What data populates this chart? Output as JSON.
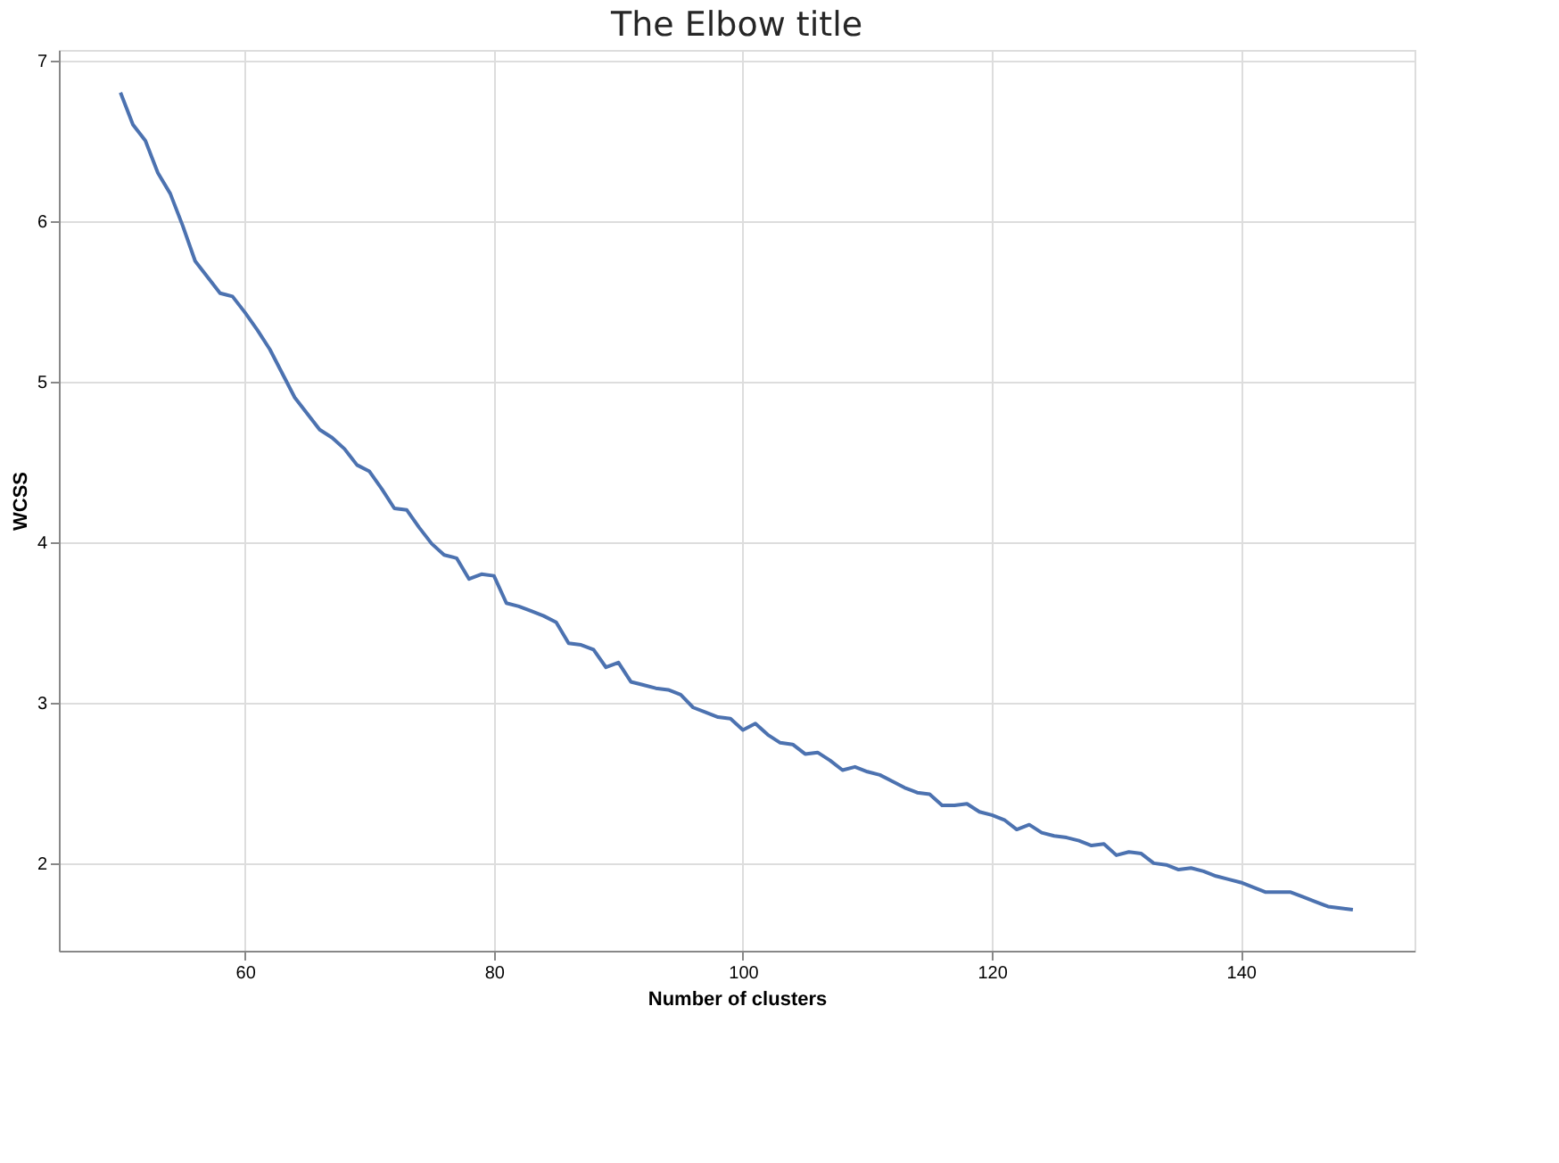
{
  "chart_data": {
    "type": "line",
    "title": "The Elbow title",
    "xlabel": "Number of clusters",
    "ylabel": "WCSS",
    "x": [
      50,
      51,
      52,
      53,
      54,
      55,
      56,
      57,
      58,
      59,
      60,
      61,
      62,
      63,
      64,
      65,
      66,
      67,
      68,
      69,
      70,
      71,
      72,
      73,
      74,
      75,
      76,
      77,
      78,
      79,
      80,
      81,
      82,
      83,
      84,
      85,
      86,
      87,
      88,
      89,
      90,
      91,
      92,
      93,
      94,
      95,
      96,
      97,
      98,
      99,
      100,
      101,
      102,
      103,
      104,
      105,
      106,
      107,
      108,
      109,
      110,
      111,
      112,
      113,
      114,
      115,
      116,
      117,
      118,
      119,
      120,
      121,
      122,
      123,
      124,
      125,
      126,
      127,
      128,
      129,
      130,
      131,
      132,
      133,
      134,
      135,
      136,
      137,
      138,
      139,
      140,
      141,
      142,
      143,
      144,
      145,
      146,
      147,
      148,
      149
    ],
    "series": [
      {
        "color": "#4c72b0",
        "values": [
          6.8,
          6.6,
          6.5,
          6.3,
          6.17,
          5.97,
          5.75,
          5.65,
          5.55,
          5.53,
          5.43,
          5.32,
          5.2,
          5.05,
          4.9,
          4.8,
          4.7,
          4.65,
          4.58,
          4.48,
          4.44,
          4.33,
          4.21,
          4.2,
          4.09,
          3.99,
          3.92,
          3.9,
          3.77,
          3.8,
          3.79,
          3.62,
          3.6,
          3.57,
          3.54,
          3.5,
          3.37,
          3.36,
          3.33,
          3.22,
          3.25,
          3.13,
          3.11,
          3.09,
          3.08,
          3.05,
          2.97,
          2.94,
          2.91,
          2.9,
          2.83,
          2.87,
          2.8,
          2.75,
          2.74,
          2.68,
          2.69,
          2.64,
          2.58,
          2.6,
          2.57,
          2.55,
          2.51,
          2.47,
          2.44,
          2.43,
          2.36,
          2.36,
          2.37,
          2.32,
          2.3,
          2.27,
          2.21,
          2.24,
          2.19,
          2.17,
          2.16,
          2.14,
          2.11,
          2.12,
          2.05,
          2.07,
          2.06,
          2.0,
          1.99,
          1.96,
          1.97,
          1.95,
          1.92,
          1.9,
          1.88,
          1.85,
          1.82,
          1.82,
          1.82,
          1.79,
          1.76,
          1.73,
          1.72,
          1.71
        ]
      }
    ],
    "xlim": [
      45.05,
      153.95
    ],
    "ylim": [
      1.455,
      7.065
    ],
    "xticks": [
      60,
      80,
      100,
      120,
      140
    ],
    "yticks": [
      2,
      3,
      4,
      5,
      6,
      7
    ],
    "grid": true,
    "legend": false,
    "line_style": "solid",
    "marker": "none"
  }
}
